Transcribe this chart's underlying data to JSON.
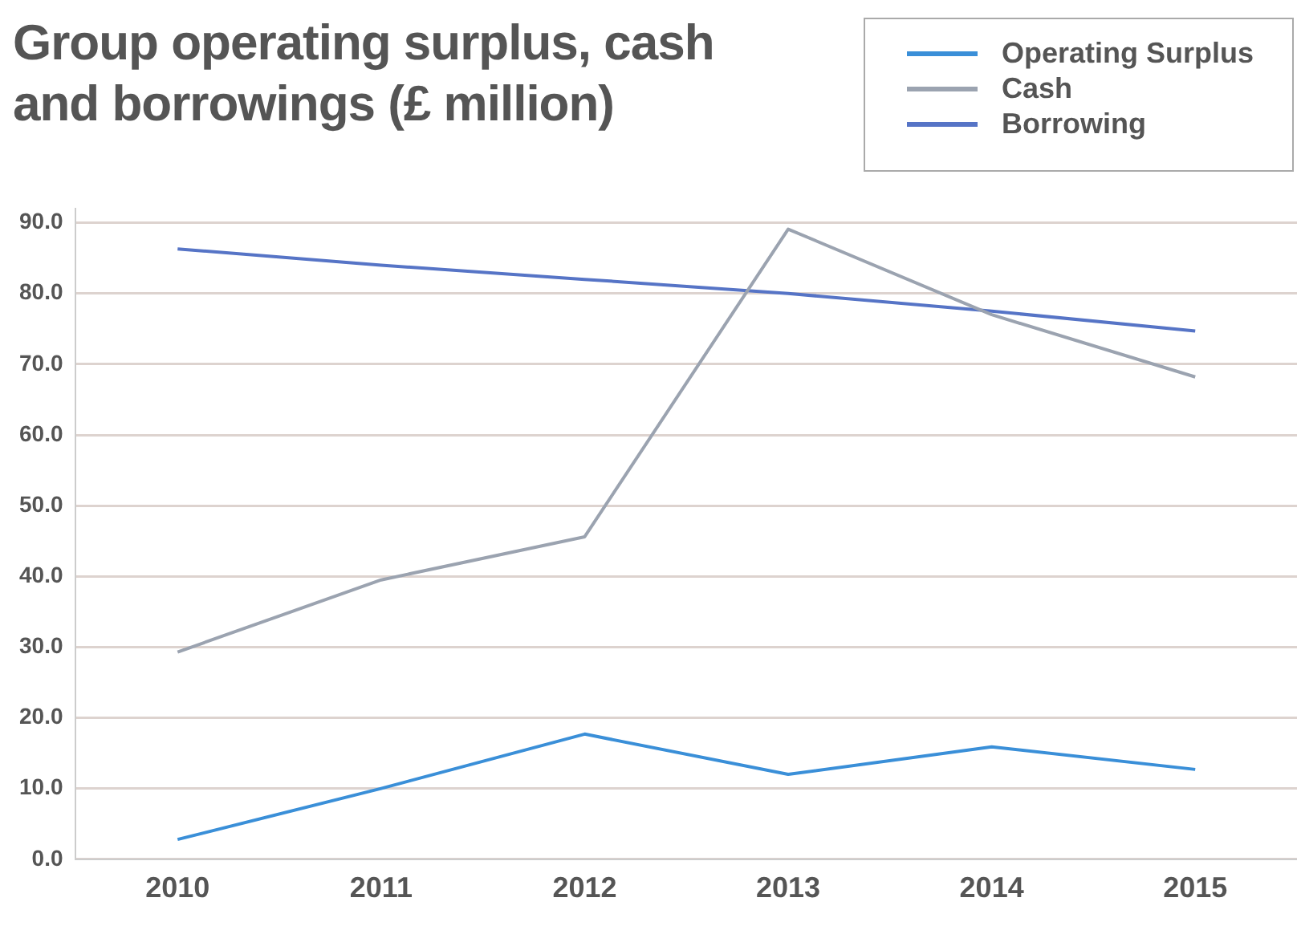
{
  "chart_data": {
    "type": "line",
    "title": "Group operating surplus, cash and borrowings (£ million)",
    "categories": [
      "2010",
      "2011",
      "2012",
      "2013",
      "2014",
      "2015"
    ],
    "series": [
      {
        "name": "Operating Surplus",
        "color": "#3a8fd8",
        "values": [
          2.8,
          10.0,
          17.7,
          12.0,
          15.9,
          12.7
        ]
      },
      {
        "name": "Cash",
        "color": "#9ba3b0",
        "values": [
          29.3,
          39.5,
          45.6,
          89.1,
          77.0,
          68.2
        ]
      },
      {
        "name": "Borrowing",
        "color": "#5674c6",
        "values": [
          86.3,
          84.0,
          82.0,
          80.0,
          77.5,
          74.7
        ]
      }
    ],
    "ylim": [
      0,
      92
    ],
    "yticks": [
      {
        "value": 0,
        "label": "0.0"
      },
      {
        "value": 10,
        "label": "10.0"
      },
      {
        "value": 20,
        "label": "20.0"
      },
      {
        "value": 30,
        "label": "30.0"
      },
      {
        "value": 40,
        "label": "40.0"
      },
      {
        "value": 50,
        "label": "50.0"
      },
      {
        "value": 60,
        "label": "60.0"
      },
      {
        "value": 70,
        "label": "70.0"
      },
      {
        "value": 80,
        "label": "80.0"
      },
      {
        "value": 90,
        "label": "90.0"
      }
    ],
    "grid": "y",
    "legend": "top right",
    "marker": "none",
    "line_style": "solid"
  }
}
